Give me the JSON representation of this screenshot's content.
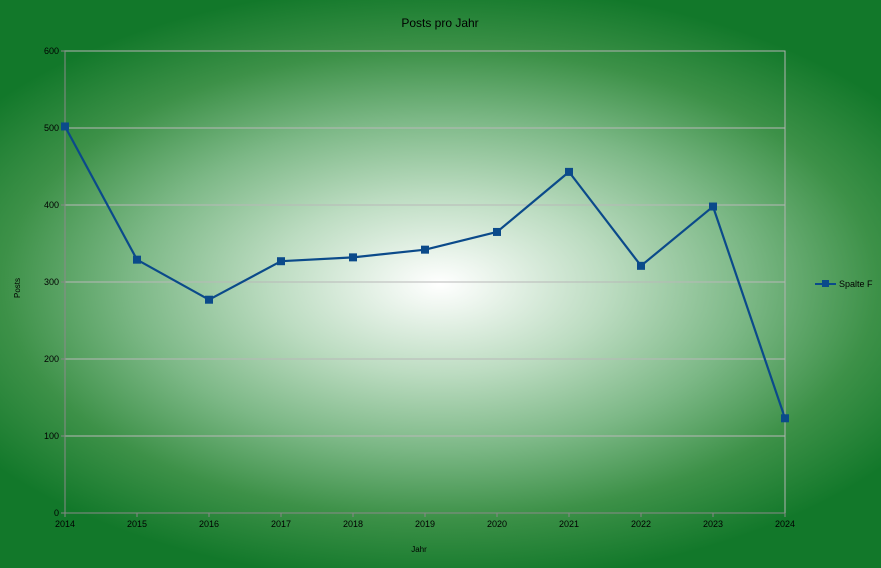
{
  "chart_data": {
    "type": "line",
    "title": "Posts pro Jahr",
    "xlabel": "Jahr",
    "ylabel": "Posts",
    "categories": [
      "2014",
      "2015",
      "2016",
      "2017",
      "2018",
      "2019",
      "2020",
      "2021",
      "2022",
      "2023",
      "2024"
    ],
    "series": [
      {
        "name": "Spalte F",
        "color": "#0b4a8a",
        "values": [
          502,
          329,
          277,
          327,
          332,
          342,
          365,
          443,
          321,
          398,
          123
        ]
      }
    ],
    "ylim": [
      0,
      600
    ],
    "yticks": [
      "0",
      "100",
      "200",
      "300",
      "400",
      "500",
      "600"
    ],
    "grid": true,
    "legend": "right"
  }
}
